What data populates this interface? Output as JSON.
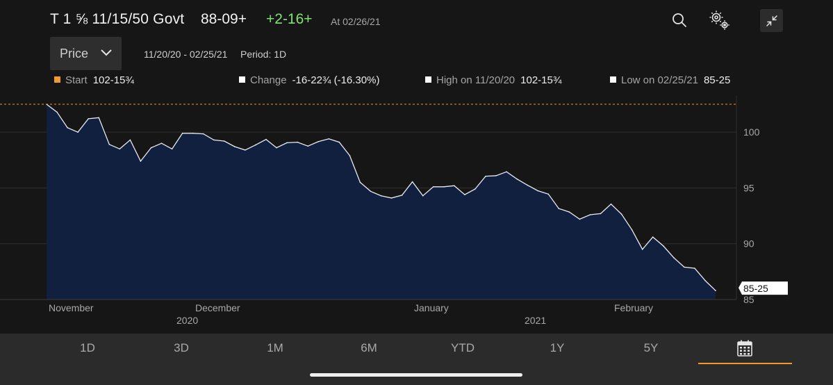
{
  "header": {
    "title": "T 1 ⅝ 11/15/50 Govt",
    "price": "88-09+",
    "change": "+2-16+",
    "as_of": "At 02/26/21",
    "icons": [
      "search-icon",
      "settings-gears-icon",
      "minimize-icon"
    ]
  },
  "controls": {
    "dropdown_label": "Price",
    "date_range": "11/20/20 - 02/25/21",
    "period": "Period: 1D"
  },
  "legend": [
    {
      "label": "Start",
      "value": "102-15¾",
      "color": "#f29a2e"
    },
    {
      "label": "Change",
      "value": "-16-22¾  (-16.30%)",
      "color": "#ffffff"
    },
    {
      "label": "High on 11/20/20",
      "value": "102-15¾",
      "color": "#ffffff"
    },
    {
      "label": "Low on 02/25/21",
      "value": "85-25",
      "color": "#ffffff"
    }
  ],
  "chart_data": {
    "type": "area",
    "x": [
      "11/20/20",
      "11/23/20",
      "11/24/20",
      "11/25/20",
      "11/27/20",
      "11/30/20",
      "12/01/20",
      "12/02/20",
      "12/03/20",
      "12/04/20",
      "12/07/20",
      "12/08/20",
      "12/09/20",
      "12/10/20",
      "12/11/20",
      "12/14/20",
      "12/15/20",
      "12/16/20",
      "12/17/20",
      "12/18/20",
      "12/21/20",
      "12/22/20",
      "12/23/20",
      "12/24/20",
      "12/28/20",
      "12/29/20",
      "12/30/20",
      "12/31/20",
      "01/04/21",
      "01/05/21",
      "01/06/21",
      "01/07/21",
      "01/08/21",
      "01/11/21",
      "01/12/21",
      "01/13/21",
      "01/14/21",
      "01/15/21",
      "01/19/21",
      "01/20/21",
      "01/21/21",
      "01/22/21",
      "01/25/21",
      "01/26/21",
      "01/27/21",
      "01/28/21",
      "01/29/21",
      "02/01/21",
      "02/02/21",
      "02/03/21",
      "02/04/21",
      "02/05/21",
      "02/08/21",
      "02/09/21",
      "02/10/21",
      "02/11/21",
      "02/12/21",
      "02/16/21",
      "02/17/21",
      "02/18/21",
      "02/19/21",
      "02/22/21",
      "02/23/21",
      "02/24/21",
      "02/25/21"
    ],
    "values": [
      102.5,
      101.8,
      100.4,
      100.0,
      101.2,
      101.3,
      98.9,
      98.5,
      99.3,
      97.4,
      98.6,
      99.0,
      98.5,
      99.9,
      99.9,
      99.85,
      99.3,
      99.2,
      98.7,
      98.4,
      98.85,
      99.35,
      98.6,
      99.05,
      99.1,
      98.75,
      99.15,
      99.4,
      99.1,
      97.9,
      95.5,
      94.7,
      94.3,
      94.1,
      94.35,
      95.55,
      94.3,
      95.1,
      95.1,
      95.2,
      94.4,
      94.9,
      96.05,
      96.1,
      96.45,
      95.8,
      95.25,
      94.75,
      94.45,
      93.15,
      92.85,
      92.2,
      92.6,
      92.7,
      93.55,
      92.65,
      91.25,
      89.5,
      90.6,
      89.8,
      88.75,
      87.9,
      87.8,
      86.7,
      85.8
    ],
    "ylim": [
      85,
      103
    ],
    "yticks": [
      "100",
      "95",
      "90",
      "85"
    ],
    "start_line_value": 102.5,
    "last_value_label": "85-25",
    "x_month_labels": [
      "November",
      "December",
      "January",
      "February"
    ],
    "x_year_labels": [
      "2020",
      "2021"
    ],
    "grid": true
  },
  "tabs": {
    "items": [
      "1D",
      "3D",
      "1M",
      "6M",
      "YTD",
      "1Y",
      "5Y"
    ],
    "selected": "calendar-icon"
  }
}
